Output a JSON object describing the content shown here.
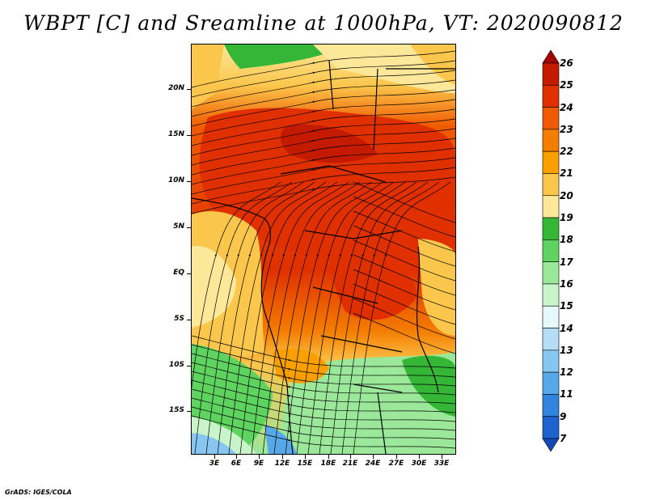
{
  "title": "WBPT [C] and Sreamline at 1000hPa, VT: 2020090812",
  "footer": "GrADS: IGES/COLA",
  "map": {
    "lat_labels": [
      "20N",
      "15N",
      "10N",
      "5N",
      "EQ",
      "5S",
      "10S",
      "15S"
    ],
    "lon_labels": [
      "3E",
      "6E",
      "9E",
      "12E",
      "15E",
      "18E",
      "21E",
      "24E",
      "27E",
      "30E",
      "33E"
    ]
  },
  "colorbar": {
    "labels": [
      "26",
      "25",
      "24",
      "23",
      "22",
      "21",
      "20",
      "19",
      "18",
      "17",
      "16",
      "15",
      "14",
      "13",
      "12",
      "11",
      "9",
      "7"
    ],
    "colors": [
      "#a50000",
      "#c41a00",
      "#e03000",
      "#f05a00",
      "#f47d00",
      "#f9a000",
      "#fbc64c",
      "#fde89a",
      "#36b636",
      "#5fd35f",
      "#9be89b",
      "#c9f4c9",
      "#e6f8fb",
      "#b5ddf6",
      "#86c6f0",
      "#56a8e8",
      "#3384de",
      "#1e62cf",
      "#1448b5"
    ]
  }
}
